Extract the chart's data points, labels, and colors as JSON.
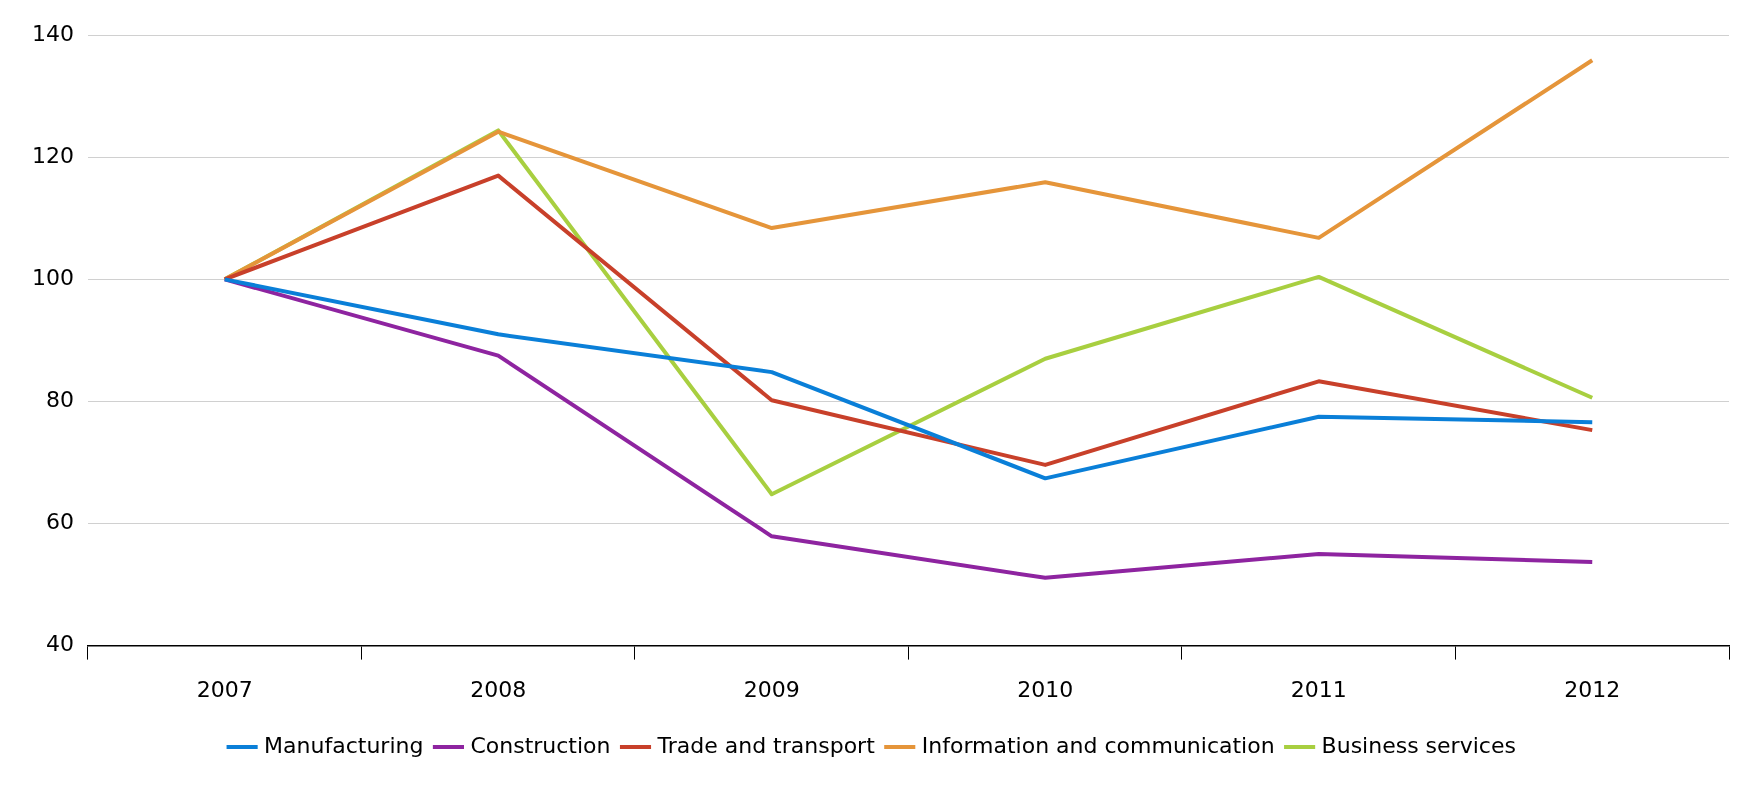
{
  "chart_data": {
    "type": "line",
    "categories": [
      "2007",
      "2008",
      "2009",
      "2010",
      "2011",
      "2012"
    ],
    "series": [
      {
        "name": "Manufacturing",
        "color": "#0a7fd8",
        "values": [
          100,
          91.0,
          84.8,
          67.4,
          77.5,
          76.6
        ]
      },
      {
        "name": "Construction",
        "color": "#8e24a0",
        "values": [
          100,
          87.5,
          57.9,
          51.1,
          55.0,
          53.7
        ]
      },
      {
        "name": "Trade and transport",
        "color": "#c8402a",
        "values": [
          100,
          117.0,
          80.2,
          69.6,
          83.3,
          75.3
        ]
      },
      {
        "name": "Information and communication",
        "color": "#e5953a",
        "values": [
          100,
          124.2,
          108.4,
          115.9,
          106.8,
          135.9
        ]
      },
      {
        "name": "Business services",
        "color": "#a8cf40",
        "values": [
          100,
          124.4,
          64.8,
          87.0,
          100.4,
          80.6
        ]
      }
    ],
    "ylim": [
      40,
      140
    ],
    "yticks": [
      40,
      60,
      80,
      100,
      120,
      140
    ],
    "grid": "y",
    "legend": "bottom",
    "marker": "none",
    "line_style": "solid"
  }
}
